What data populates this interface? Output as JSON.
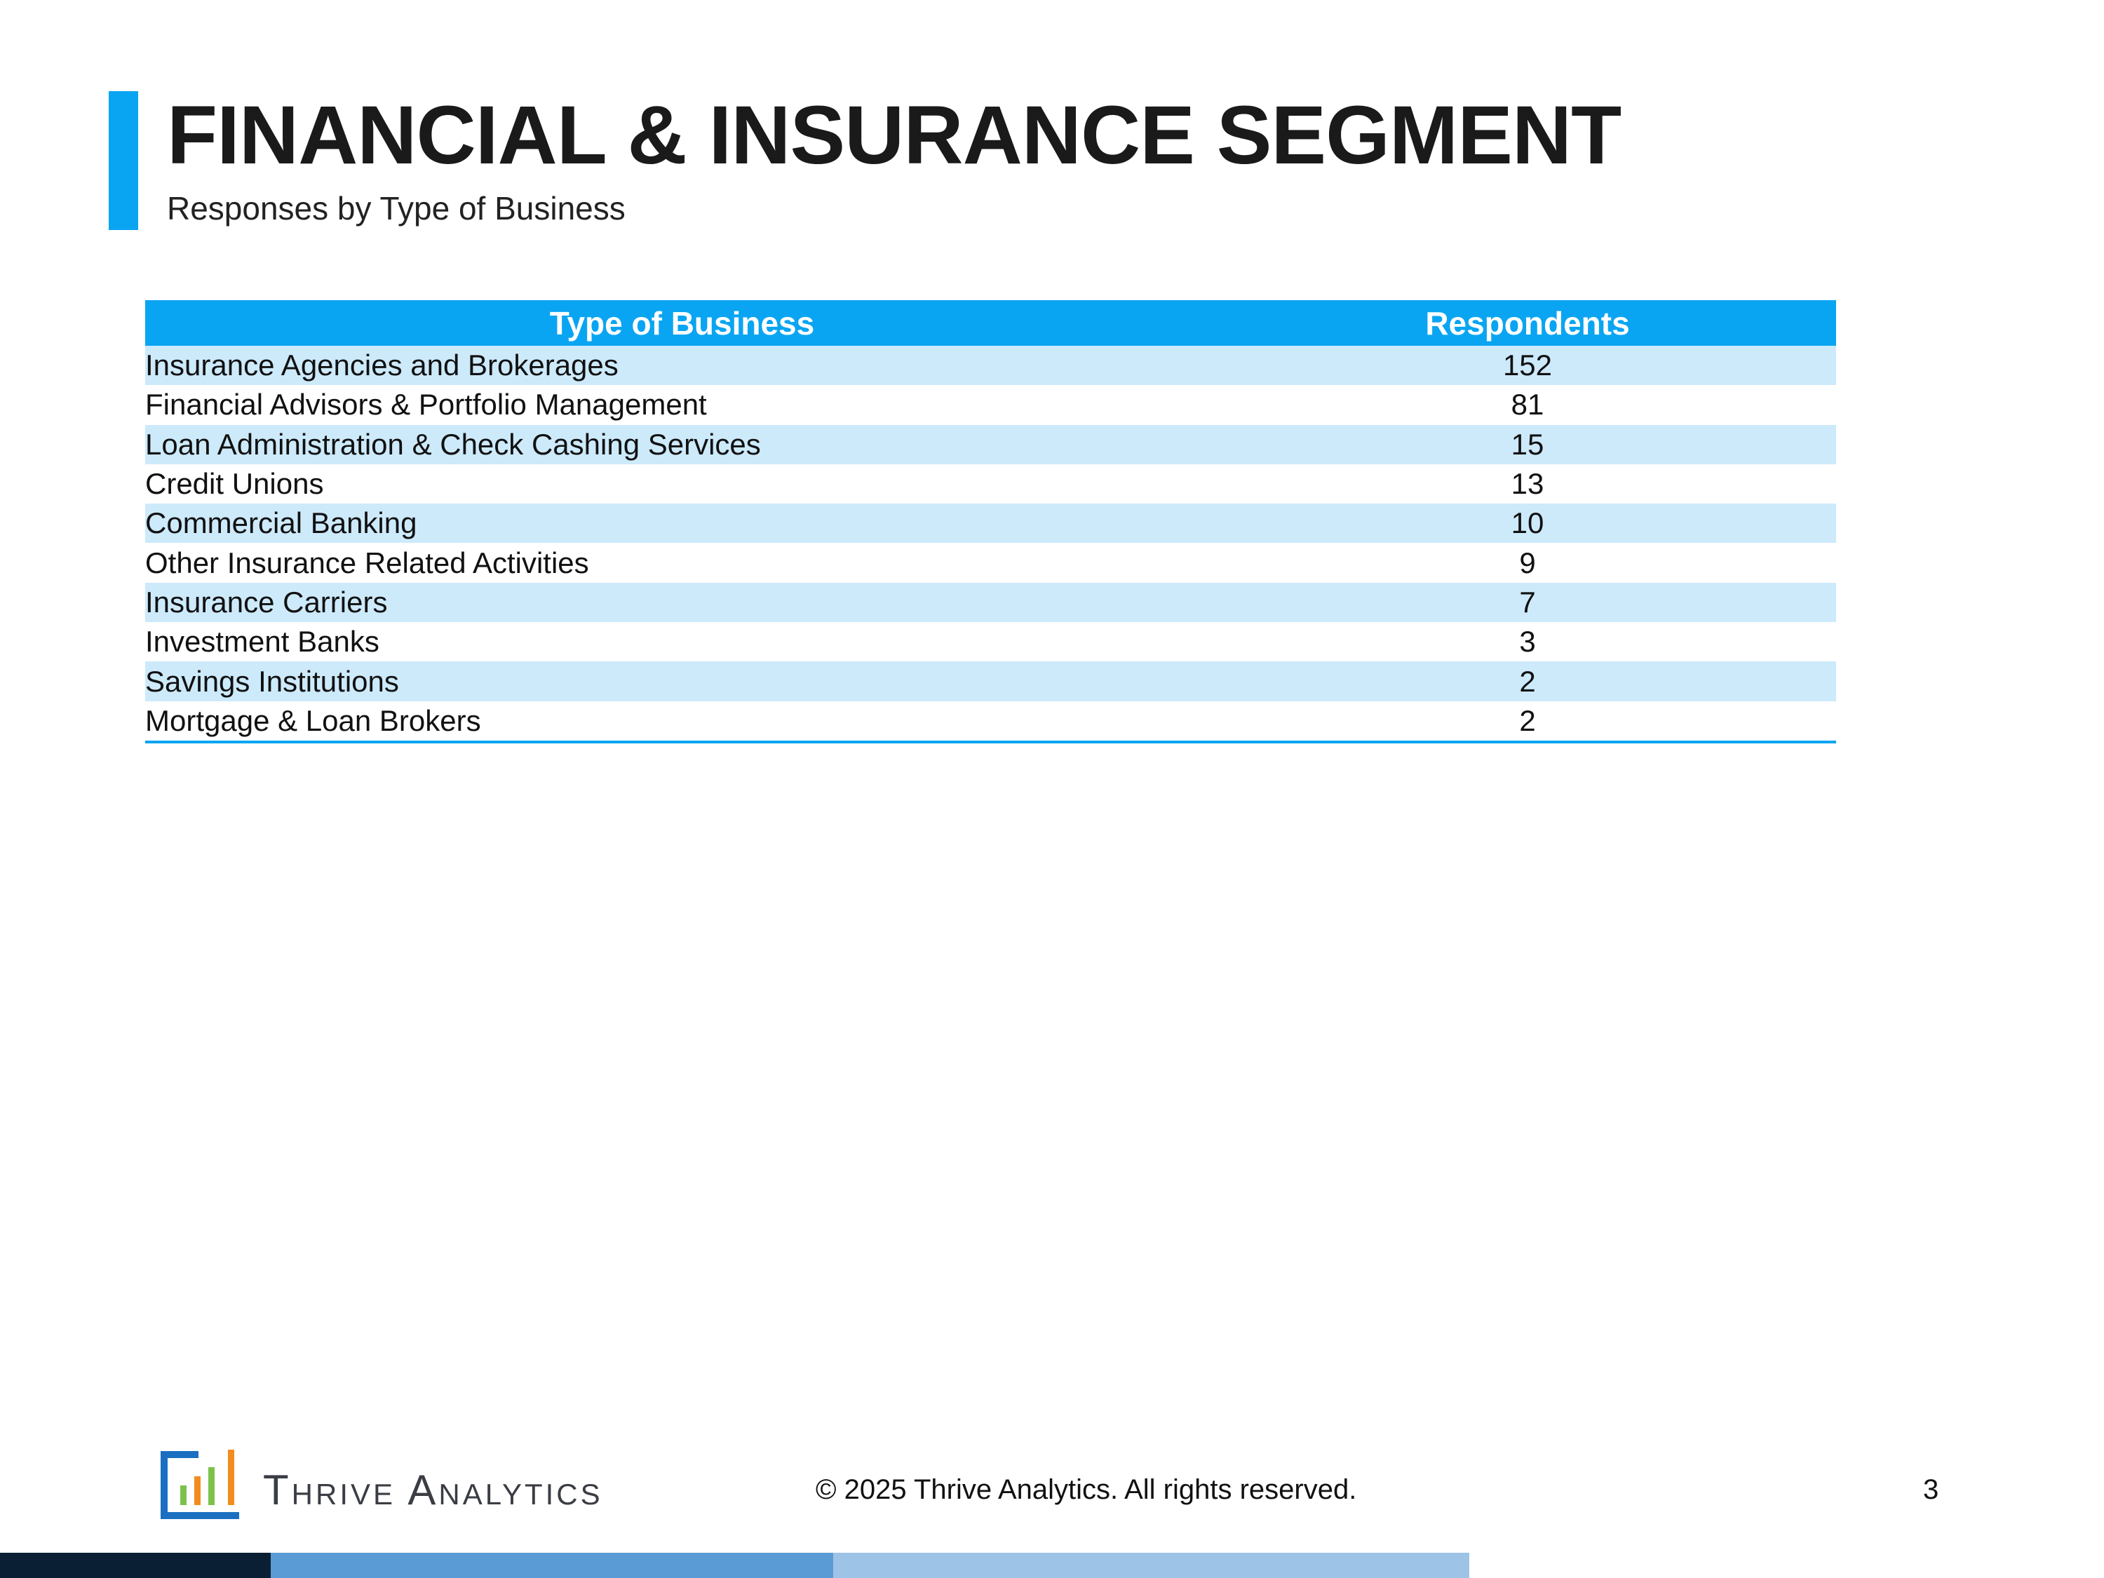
{
  "header": {
    "title": "FINANCIAL & INSURANCE SEGMENT",
    "subtitle": "Responses by Type of Business"
  },
  "table": {
    "columns": [
      "Type of Business",
      "Respondents"
    ],
    "rows": [
      {
        "type": "Insurance Agencies and Brokerages",
        "respondents": "152"
      },
      {
        "type": "Financial Advisors & Portfolio Management",
        "respondents": "81"
      },
      {
        "type": "Loan Administration & Check Cashing Services",
        "respondents": "15"
      },
      {
        "type": "Credit Unions",
        "respondents": "13"
      },
      {
        "type": "Commercial Banking",
        "respondents": "10"
      },
      {
        "type": "Other Insurance Related Activities",
        "respondents": "9"
      },
      {
        "type": "Insurance Carriers",
        "respondents": "7"
      },
      {
        "type": "Investment Banks",
        "respondents": "3"
      },
      {
        "type": "Savings Institutions",
        "respondents": "2"
      },
      {
        "type": "Mortgage & Loan Brokers",
        "respondents": "2"
      }
    ]
  },
  "footer": {
    "brand": "Thrive Analytics",
    "copyright": "© 2025 Thrive Analytics. All rights reserved.",
    "page_number": "3"
  },
  "colors": {
    "accent": "#0aa5f2",
    "row_alt": "#cdeafb",
    "bar_dark": "#0a1f33",
    "bar_mid": "#5b9bd5",
    "bar_light": "#9dc3e6"
  }
}
